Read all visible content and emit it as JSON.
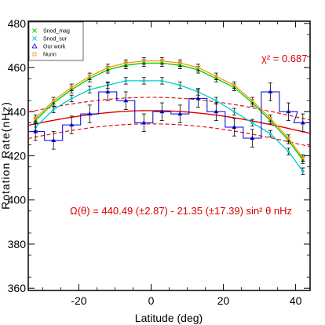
{
  "chart_data": {
    "type": "line",
    "title": "",
    "xlabel": "Latitude (deg)",
    "ylabel": "Rotation Rate(nHz)",
    "xlim": [
      -34,
      44
    ],
    "ylim": [
      359,
      481
    ],
    "xticks": [
      -20,
      0,
      20,
      40
    ],
    "yticks": [
      360,
      380,
      400,
      420,
      440,
      460,
      480
    ],
    "legend_position": "top-left",
    "series": [
      {
        "name": "Snod_mag",
        "color": "#00cc00",
        "marker": "cross",
        "x": [
          -32,
          -27,
          -22,
          -17,
          -12,
          -7,
          -2,
          3,
          8,
          13,
          18,
          23,
          28,
          33,
          38,
          42
        ],
        "y": [
          436,
          444,
          450,
          455,
          459,
          461,
          462,
          462,
          461,
          459,
          455,
          451,
          444,
          436,
          427,
          418
        ]
      },
      {
        "name": "Snod_sur",
        "color": "#00cccc",
        "marker": "cross",
        "x": [
          -32,
          -27,
          -22,
          -17,
          -12,
          -7,
          -2,
          3,
          8,
          13,
          18,
          23,
          28,
          33,
          38,
          42
        ],
        "y": [
          433,
          441,
          446,
          450,
          452,
          454,
          454,
          454,
          452,
          449,
          445,
          440,
          435,
          430,
          422,
          413
        ]
      },
      {
        "name": "Our work",
        "color": "#0000cc",
        "marker": "triangle",
        "x": [
          -32,
          -27,
          -22,
          -17,
          -12,
          -7,
          -2,
          3,
          8,
          13,
          18,
          23,
          28,
          33,
          38,
          42
        ],
        "y": [
          431,
          427,
          434,
          439,
          449,
          445,
          435,
          440,
          439,
          446,
          440,
          433,
          428,
          449,
          440,
          435
        ]
      },
      {
        "name": "Nunn",
        "color": "#ee9900",
        "marker": "square",
        "x": [
          -32,
          -27,
          -22,
          -17,
          -12,
          -7,
          -2,
          3,
          8,
          13,
          18,
          23,
          28,
          33,
          38,
          42
        ],
        "y": [
          437,
          445,
          451,
          456,
          460,
          462,
          463,
          463,
          462,
          460,
          456,
          452,
          445,
          437,
          428,
          419
        ]
      }
    ],
    "fit": {
      "color": "#dd0000",
      "a": 440.49,
      "b": -21.35,
      "band": 6
    },
    "annotations": {
      "chi_squared": "χ² = 0.687",
      "equation": "Ω(θ) = 440.49 (±2.87) - 21.35 (±17.39) sin² θ  nHz"
    }
  }
}
